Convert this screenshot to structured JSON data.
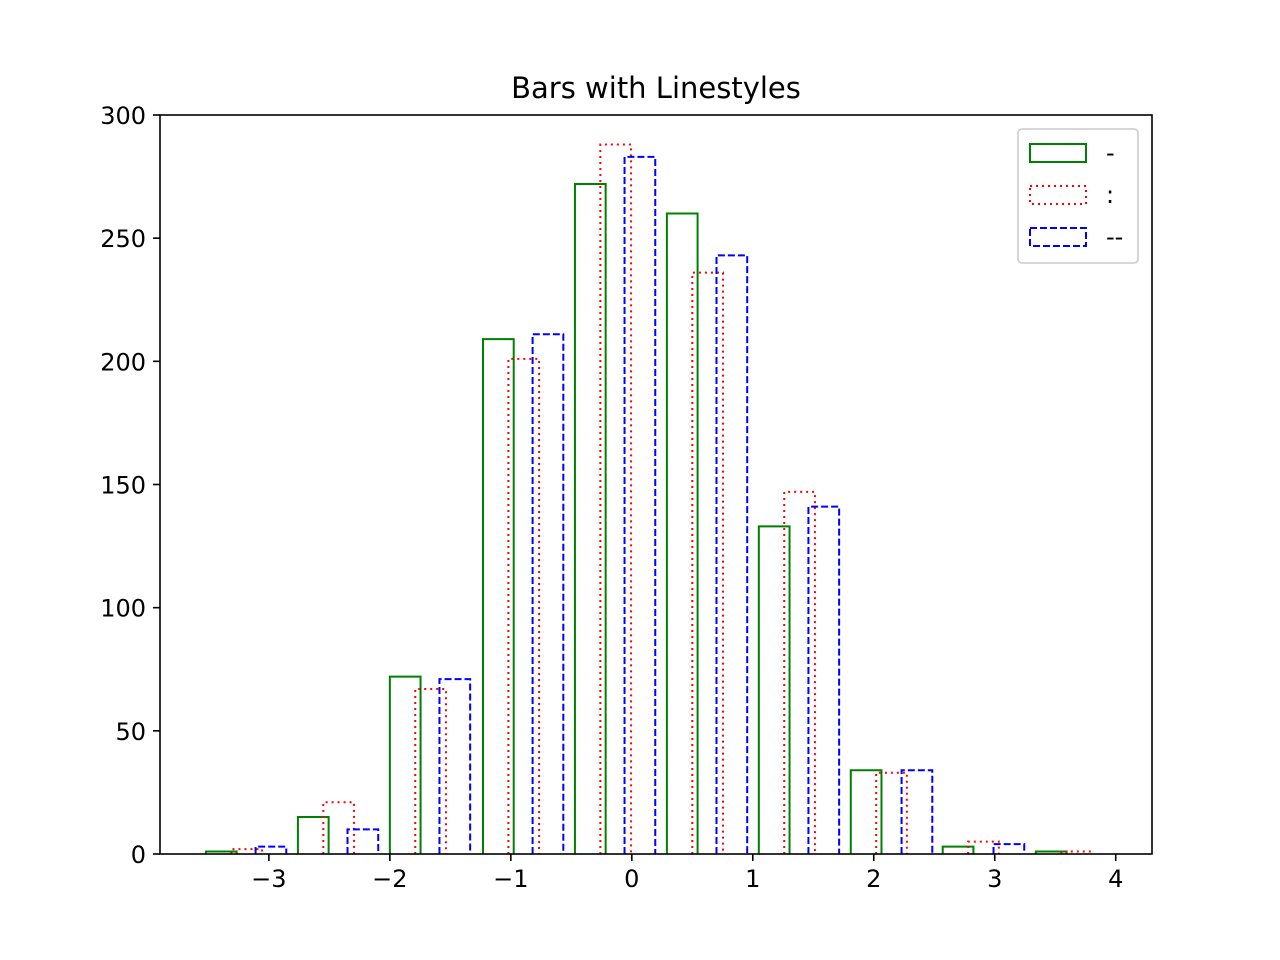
{
  "chart_data": {
    "type": "bar",
    "title": "Bars with Linestyles",
    "xlabel": "",
    "ylabel": "",
    "xlim": [
      -3.9,
      4.3
    ],
    "ylim": [
      0,
      300
    ],
    "x_ticks": [
      -3,
      -2,
      -1,
      0,
      1,
      2,
      3,
      4
    ],
    "x_tick_labels": [
      "−3",
      "−2",
      "−1",
      "0",
      "1",
      "2",
      "3",
      "4"
    ],
    "y_ticks": [
      0,
      50,
      100,
      150,
      200,
      250,
      300
    ],
    "y_tick_labels": [
      "0",
      "50",
      "100",
      "150",
      "200",
      "250",
      "300"
    ],
    "grid": false,
    "legend_position": "top-right",
    "bin_width": 0.7615,
    "series": [
      {
        "name": "-",
        "linestyle": "solid",
        "color": "#008000",
        "bin_left": [
          -3.52,
          -2.76,
          -2.0,
          -1.23,
          -0.47,
          0.29,
          1.05,
          1.81,
          2.57,
          3.34
        ],
        "values": [
          1,
          15,
          72,
          209,
          272,
          260,
          133,
          34,
          3,
          1
        ]
      },
      {
        "name": ":",
        "linestyle": "dotted",
        "color": "#ff0000",
        "bin_left": [
          -3.31,
          -2.55,
          -1.79,
          -1.02,
          -0.26,
          0.5,
          1.26,
          2.02,
          2.78,
          3.55
        ],
        "values": [
          2,
          21,
          67,
          201,
          288,
          236,
          147,
          33,
          5,
          1
        ]
      },
      {
        "name": "--",
        "linestyle": "dashed",
        "color": "#0000ff",
        "bin_left": [
          -3.11,
          -2.35,
          -1.59,
          -0.82,
          -0.06,
          0.7,
          1.46,
          2.23,
          2.99
        ],
        "values": [
          3,
          10,
          71,
          211,
          283,
          243,
          141,
          34,
          4
        ]
      }
    ]
  }
}
